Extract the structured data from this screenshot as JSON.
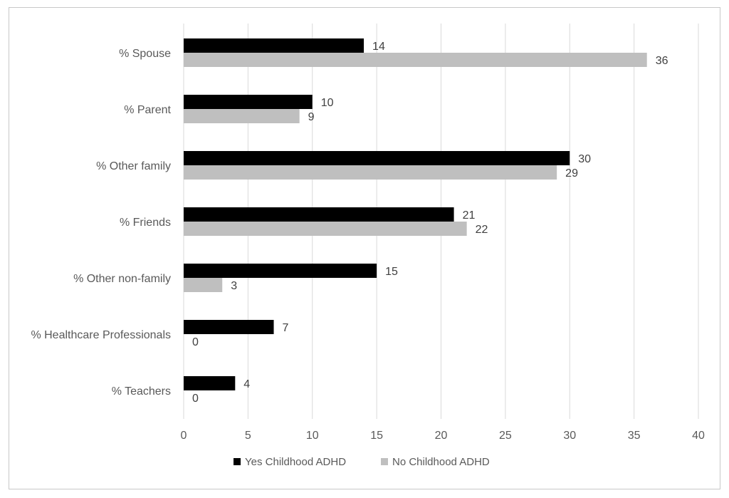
{
  "chart_data": {
    "type": "bar",
    "orientation": "horizontal",
    "categories": [
      "% Spouse",
      "% Parent",
      "% Other family",
      "% Friends",
      "% Other non-family",
      "% Healthcare Professionals",
      "% Teachers"
    ],
    "series": [
      {
        "name": "Yes Childhood ADHD",
        "color": "#000000",
        "values": [
          14,
          10,
          30,
          21,
          15,
          7,
          4
        ]
      },
      {
        "name": "No Childhood ADHD",
        "color": "#bfbfbf",
        "values": [
          36,
          9,
          29,
          22,
          3,
          0,
          0
        ]
      }
    ],
    "xlim": [
      0,
      40
    ],
    "xticks": [
      0,
      5,
      10,
      15,
      20,
      25,
      30,
      35,
      40
    ],
    "grid": "vertical",
    "legend_position": "bottom",
    "title": "",
    "xlabel": "",
    "ylabel": ""
  }
}
